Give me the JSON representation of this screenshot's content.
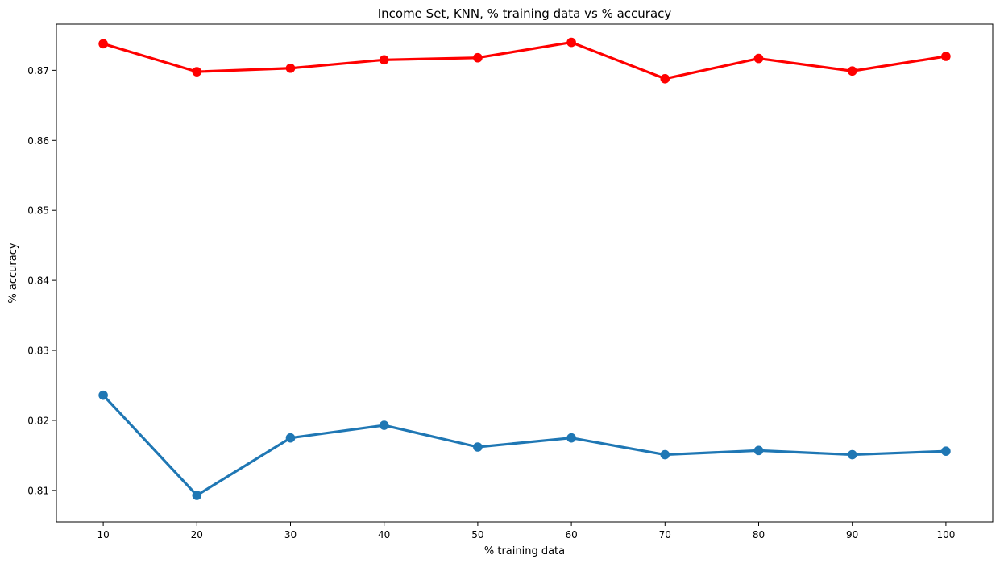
{
  "chart_data": {
    "type": "line",
    "title": "Income Set, KNN, % training data vs % accuracy",
    "xlabel": "% training data",
    "ylabel": "% accuracy",
    "categories": [
      "10",
      "20",
      "30",
      "40",
      "50",
      "60",
      "70",
      "80",
      "90",
      "100"
    ],
    "ylim": [
      0.8055,
      0.8766
    ],
    "yticks": [
      "0.81",
      "0.82",
      "0.83",
      "0.84",
      "0.85",
      "0.86",
      "0.87"
    ],
    "grid": false,
    "legend": "none",
    "series": [
      {
        "color": "#ff0000",
        "values": [
          0.8738,
          0.8698,
          0.8703,
          0.8715,
          0.8718,
          0.874,
          0.8688,
          0.8717,
          0.8699,
          0.872
        ]
      },
      {
        "color": "#1f77b4",
        "values": [
          0.8236,
          0.8093,
          0.8175,
          0.8193,
          0.8162,
          0.8175,
          0.8151,
          0.8157,
          0.8151,
          0.8156
        ]
      }
    ]
  }
}
